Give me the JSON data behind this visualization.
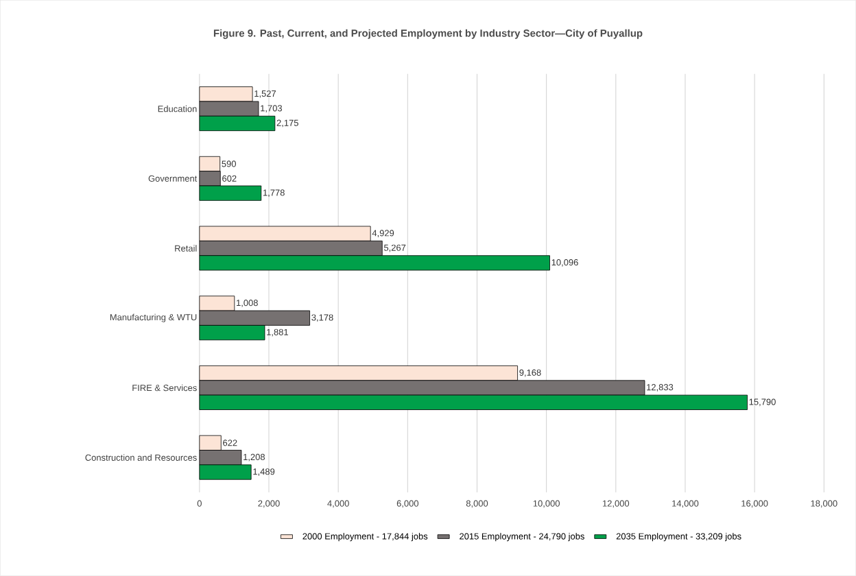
{
  "chart_data": {
    "type": "bar",
    "orientation": "horizontal",
    "title": "Figure 9. Past, Current, and Projected Employment by Industry Sector—City of Puyallup",
    "categories": [
      "Education",
      "Government",
      "Retail",
      "Manufacturing & WTU",
      "FIRE & Services",
      "Construction and Resources"
    ],
    "series": [
      {
        "name": "2000 Employment - 17,844 jobs",
        "color": "#fce4d6",
        "values": [
          1527,
          590,
          4929,
          1008,
          9168,
          622
        ],
        "value_labels": [
          "1,527",
          "590",
          "4,929",
          "1,008",
          "9,168",
          "622"
        ]
      },
      {
        "name": "2015 Employment - 24,790 jobs",
        "color": "#767171",
        "values": [
          1703,
          602,
          5267,
          3178,
          12833,
          1208
        ],
        "value_labels": [
          "1,703",
          "602",
          "5,267",
          "3,178",
          "12,833",
          "1,208"
        ]
      },
      {
        "name": "2035 Employment - 33,209 jobs",
        "color": "#00a04a",
        "values": [
          2175,
          1778,
          10096,
          1881,
          15790,
          1489
        ],
        "value_labels": [
          "2,175",
          "1,778",
          "10,096",
          "1,881",
          "15,790",
          "1,489"
        ]
      }
    ],
    "xlim": [
      0,
      18000
    ],
    "xticks": [
      0,
      {
        "value": 2000,
        "label": "2,000"
      },
      {
        "value": 4000,
        "label": "4,000"
      },
      {
        "value": 6000,
        "label": "6,000"
      },
      {
        "value": 8000,
        "label": "8,000"
      },
      {
        "value": 10000,
        "label": "10,000"
      },
      {
        "value": 12000,
        "label": "12,000"
      },
      {
        "value": 14000,
        "label": "14,000"
      },
      {
        "value": 16000,
        "label": "16,000"
      },
      {
        "value": 18000,
        "label": "18,000"
      }
    ],
    "grid": "x",
    "legend": "bottom"
  }
}
